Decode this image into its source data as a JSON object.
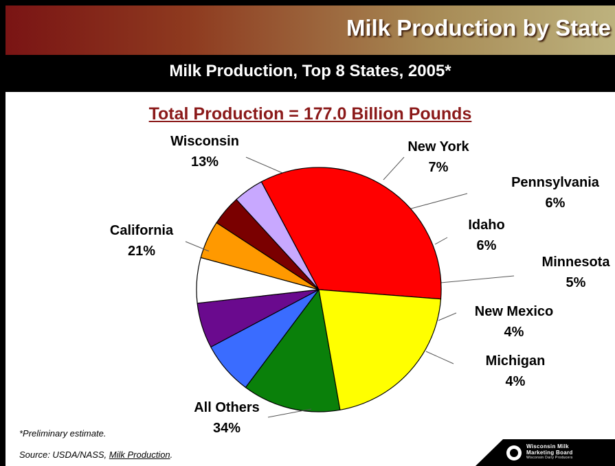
{
  "slide": {
    "title": "Milk Production by State",
    "subtitle": "Milk Production, Top 8 States, 2005*",
    "total_label": "Total Production = 177.0 Billion Pounds",
    "footnote": "*Preliminary estimate.",
    "source_prefix": "Source:  USDA/NASS, ",
    "source_publication": "Milk Production",
    "source_suffix": ".",
    "logo": {
      "line1": "Wisconsin Milk",
      "line2": "Marketing Board",
      "line3": "Wisconsin Dairy Producers"
    }
  },
  "colors": {
    "banner_dark": "#7a1414",
    "banner_light": "#bdb27e",
    "total_label": "#8b1a1a"
  },
  "chart_data": {
    "type": "pie",
    "title": "Total Production = 177.0 Billion Pounds",
    "slices": [
      {
        "label": "Wisconsin",
        "value": 13,
        "display": "13%",
        "color": "#0a800a"
      },
      {
        "label": "New York",
        "value": 7,
        "display": "7%",
        "color": "#3a6cff"
      },
      {
        "label": "Pennsylvania",
        "value": 6,
        "display": "6%",
        "color": "#6a0a8e"
      },
      {
        "label": "Idaho",
        "value": 6,
        "display": "6%",
        "color": "#ffffff"
      },
      {
        "label": "Minnesota",
        "value": 5,
        "display": "5%",
        "color": "#ff9900"
      },
      {
        "label": "New Mexico",
        "value": 4,
        "display": "4%",
        "color": "#7a0000"
      },
      {
        "label": "Michigan",
        "value": 4,
        "display": "4%",
        "color": "#c8a8ff"
      },
      {
        "label": "All Others",
        "value": 34,
        "display": "34%",
        "color": "#ff0000"
      },
      {
        "label": "California",
        "value": 21,
        "display": "21%",
        "color": "#ffff00"
      }
    ]
  }
}
